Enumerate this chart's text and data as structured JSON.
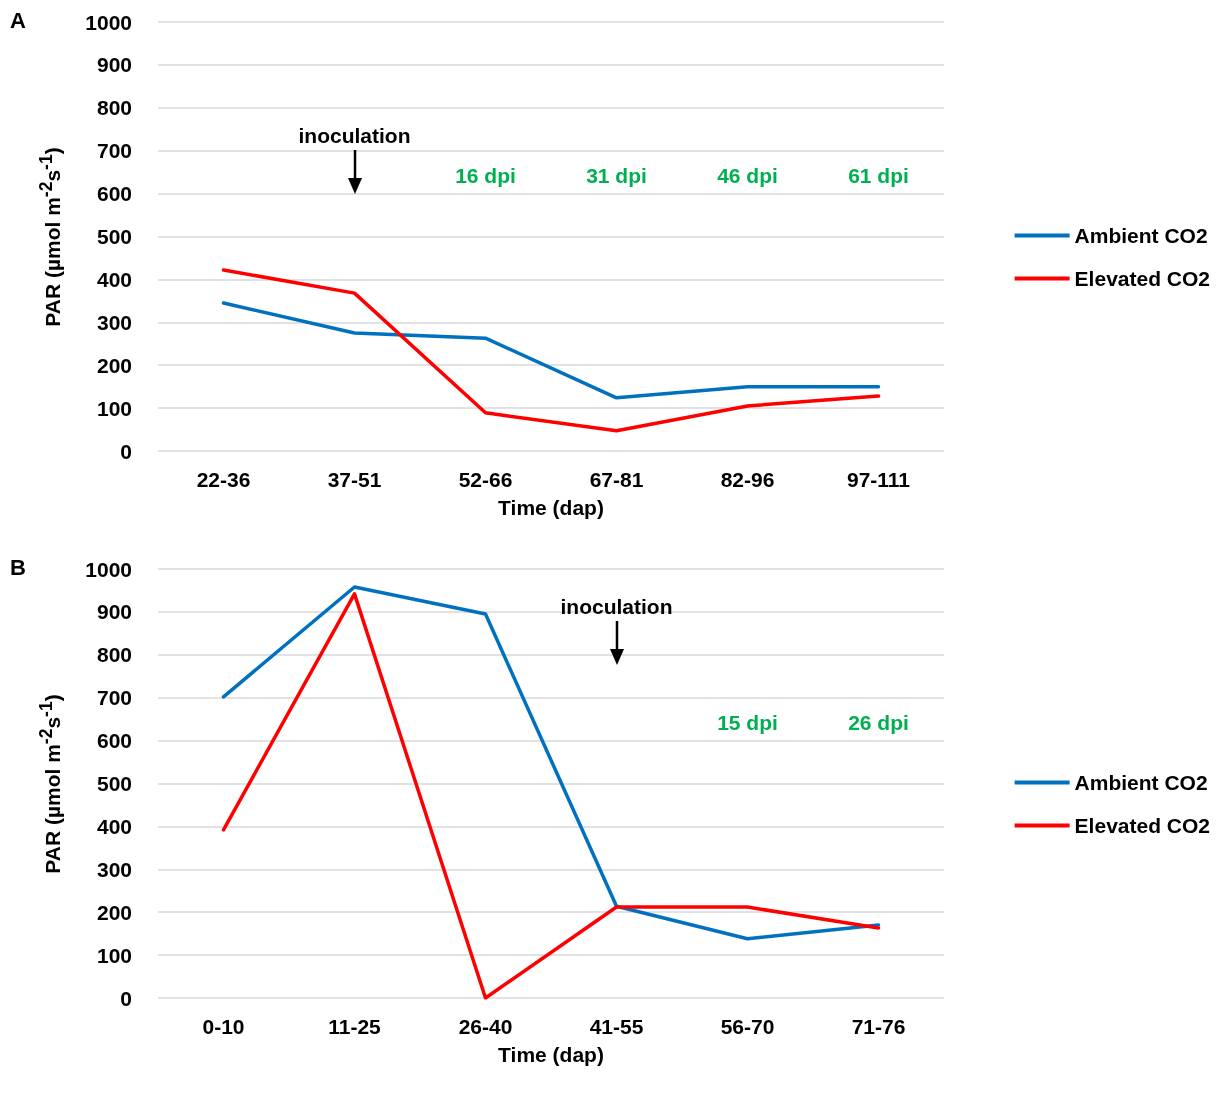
{
  "chart_data": [
    {
      "type": "line",
      "title": "A",
      "xlabel": "Time (dap)",
      "ylabel": "PAR (µmol m$^{-2}$s$^{-1}$)",
      "categories": [
        "22-36",
        "37-51",
        "52-66",
        "67-81",
        "82-96",
        "97-111"
      ],
      "series": [
        {
          "name": "Ambient CO2",
          "color": "#0070c0",
          "values": [
            345,
            275,
            263,
            124,
            150,
            150
          ]
        },
        {
          "name": "Elevated CO2",
          "color": "#ff0000",
          "values": [
            422,
            368,
            89,
            47,
            105,
            128
          ]
        }
      ],
      "ylim": [
        0,
        1000
      ],
      "yticks": [
        0,
        100,
        200,
        300,
        400,
        500,
        600,
        700,
        800,
        900,
        1000
      ],
      "grid": "y",
      "legend": "right",
      "marker": "none",
      "line_style": "solid",
      "annotations": [
        "inoculation",
        "16 dpi",
        "31 dpi",
        "46 dpi",
        "61 dpi"
      ]
    },
    {
      "type": "line",
      "title": "B",
      "xlabel": "Time (dap)",
      "ylabel": "PAR (µmol m$^{-2}$s$^{-1}$)",
      "categories": [
        "0-10",
        "11-25",
        "26-40",
        "41-55",
        "56-70",
        "71-76"
      ],
      "series": [
        {
          "name": "Ambient CO2",
          "color": "#0070c0",
          "values": [
            702,
            958,
            895,
            214,
            138,
            170
          ]
        },
        {
          "name": "Elevated CO2",
          "color": "#ff0000",
          "values": [
            392,
            942,
            0,
            212,
            212,
            163
          ]
        }
      ],
      "ylim": [
        0,
        1000
      ],
      "yticks": [
        0,
        100,
        200,
        300,
        400,
        500,
        600,
        700,
        800,
        900,
        1000
      ],
      "grid": "y",
      "legend": "right",
      "marker": "none",
      "line_style": "solid",
      "annotations": [
        "inoculation",
        "15 dpi",
        "26 dpi"
      ]
    }
  ]
}
